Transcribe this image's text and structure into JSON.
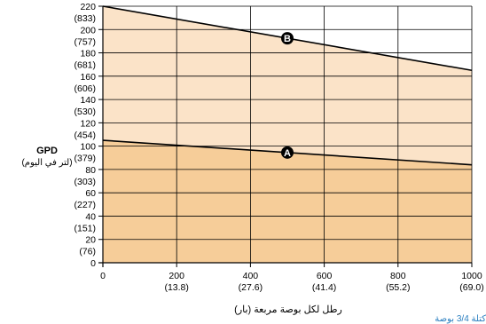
{
  "chart_data": {
    "type": "line",
    "x": [
      0,
      200,
      400,
      600,
      800,
      1000
    ],
    "x_ticks": [
      {
        "value": 0,
        "label": "0",
        "sub": ""
      },
      {
        "value": 200,
        "label": "200",
        "sub": "(13.8)"
      },
      {
        "value": 400,
        "label": "400",
        "sub": "(27.6)"
      },
      {
        "value": 600,
        "label": "600",
        "sub": "(41.4)"
      },
      {
        "value": 800,
        "label": "800",
        "sub": "(55.2)"
      },
      {
        "value": 1000,
        "label": "1000",
        "sub": "(69.0)"
      }
    ],
    "y_ticks": [
      {
        "value": 0,
        "label": "0",
        "sub": ""
      },
      {
        "value": 20,
        "label": "20",
        "sub": "(76)"
      },
      {
        "value": 40,
        "label": "40",
        "sub": "(151)"
      },
      {
        "value": 60,
        "label": "60",
        "sub": "(227)"
      },
      {
        "value": 80,
        "label": "80",
        "sub": "(303)"
      },
      {
        "value": 100,
        "label": "100",
        "sub": "(379)"
      },
      {
        "value": 120,
        "label": "120",
        "sub": "(454)"
      },
      {
        "value": 140,
        "label": "140",
        "sub": "(530)"
      },
      {
        "value": 160,
        "label": "160",
        "sub": "(606)"
      },
      {
        "value": 180,
        "label": "180",
        "sub": "(681)"
      },
      {
        "value": 200,
        "label": "200",
        "sub": "(757)"
      },
      {
        "value": 220,
        "label": "220",
        "sub": "(833)"
      }
    ],
    "xlim": [
      0,
      1000
    ],
    "ylim": [
      0,
      220
    ],
    "grid": true,
    "series": [
      {
        "name": "B",
        "x": [
          0,
          1000
        ],
        "values": [
          220,
          165
        ],
        "fill": "#fbe3c8",
        "label_at": 500
      },
      {
        "name": "A",
        "x": [
          0,
          1000
        ],
        "values": [
          105,
          84
        ],
        "fill": "#f6cd99",
        "label_at": 500
      }
    ],
    "ylabel": "GPD",
    "ylabel_sub": "(لتر في اليوم)",
    "xlabel": "رطل لكل بوصة مربعة (بار)"
  },
  "footnote": "كتلة 3/4 بوصة"
}
